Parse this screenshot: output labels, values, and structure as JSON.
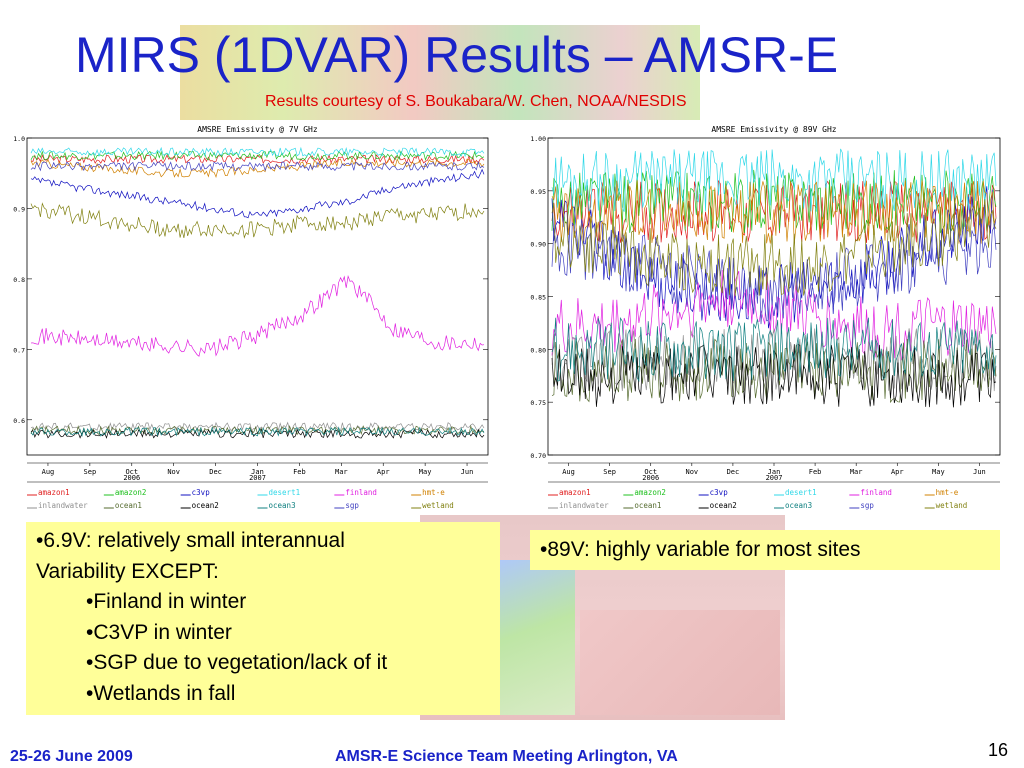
{
  "slide": {
    "title": "MIRS (1DVAR) Results – AMSR-E",
    "subtitle": "Results courtesy of S. Boukabara/W. Chen, NOAA/NESDIS",
    "note_left": {
      "line1": "•6.9V: relatively small interannual",
      "line2": "Variability EXCEPT:",
      "bullets": [
        "•Finland in winter",
        "•C3VP in winter",
        "•SGP due to vegetation/lack of it",
        "•Wetlands in fall"
      ]
    },
    "note_right": "•89V: highly variable for most sites",
    "footer_date": "25-26 June 2009",
    "footer_meeting": "AMSR-E Science Team Meeting  Arlington, VA",
    "page_number": "16"
  },
  "colors": {
    "title": "#1a23c8",
    "subtitle": "#e00000",
    "note_bg": "#ffff99",
    "amazon1": "#e02020",
    "amazon2": "#20c020",
    "c3vp": "#1010c0",
    "desert1": "#30d8e8",
    "finland": "#e020e0",
    "hmt-e": "#d08000",
    "inlandwater": "#909090",
    "ocean1": "#556b2f",
    "ocean2": "#000000",
    "ocean3": "#108080",
    "sgp": "#4040c0",
    "wetland": "#808010"
  },
  "chart_data": [
    {
      "type": "line",
      "title": "AMSRE Emissivity @ 7V GHz",
      "x_ticks": [
        "Aug",
        "Sep",
        "Oct",
        "Nov",
        "Dec",
        "Jan",
        "Feb",
        "Mar",
        "Apr",
        "May",
        "Jun"
      ],
      "year_labels": [
        {
          "label": "2006",
          "month": "Oct"
        },
        {
          "label": "2007",
          "month": "Jan"
        }
      ],
      "ylim": [
        0.55,
        1.0
      ],
      "y_ticks": [
        "1.0",
        "0.9",
        "0.8",
        "0.7",
        "0.6"
      ],
      "legend": [
        "amazon1",
        "amazon2",
        "c3vp",
        "desert1",
        "finland",
        "hmt-e",
        "inlandwater",
        "ocean1",
        "ocean2",
        "ocean3",
        "sgp",
        "wetland"
      ],
      "series": [
        {
          "name": "amazon1",
          "values": [
            0.97,
            0.97,
            0.97,
            0.97,
            0.97,
            0.97,
            0.97,
            0.97,
            0.97,
            0.97,
            0.97
          ]
        },
        {
          "name": "amazon2",
          "values": [
            0.975,
            0.975,
            0.975,
            0.975,
            0.975,
            0.975,
            0.975,
            0.975,
            0.975,
            0.975,
            0.975
          ]
        },
        {
          "name": "c3vp",
          "values": [
            0.94,
            0.93,
            0.92,
            0.91,
            0.9,
            0.89,
            0.9,
            0.91,
            0.93,
            0.94,
            0.95
          ]
        },
        {
          "name": "desert1",
          "values": [
            0.98,
            0.98,
            0.98,
            0.98,
            0.98,
            0.98,
            0.98,
            0.98,
            0.98,
            0.98,
            0.98
          ]
        },
        {
          "name": "finland",
          "values": [
            0.72,
            0.715,
            0.71,
            0.705,
            0.7,
            0.72,
            0.75,
            0.8,
            0.73,
            0.71,
            0.71
          ]
        },
        {
          "name": "hmt-e",
          "values": [
            0.965,
            0.96,
            0.955,
            0.95,
            0.95,
            0.955,
            0.96,
            0.965,
            0.965,
            0.965,
            0.965
          ]
        },
        {
          "name": "inlandwater",
          "values": [
            0.59,
            0.59,
            0.59,
            0.59,
            0.59,
            0.59,
            0.59,
            0.59,
            0.59,
            0.59,
            0.59
          ]
        },
        {
          "name": "ocean1",
          "values": [
            0.585,
            0.585,
            0.585,
            0.585,
            0.585,
            0.585,
            0.585,
            0.585,
            0.585,
            0.585,
            0.585
          ]
        },
        {
          "name": "ocean2",
          "values": [
            0.58,
            0.58,
            0.58,
            0.58,
            0.58,
            0.58,
            0.58,
            0.58,
            0.58,
            0.58,
            0.58
          ]
        },
        {
          "name": "ocean3",
          "values": [
            0.583,
            0.583,
            0.583,
            0.583,
            0.583,
            0.583,
            0.583,
            0.583,
            0.583,
            0.583,
            0.583
          ]
        },
        {
          "name": "sgp",
          "values": [
            0.96,
            0.96,
            0.96,
            0.96,
            0.96,
            0.96,
            0.96,
            0.96,
            0.96,
            0.96,
            0.96
          ]
        },
        {
          "name": "wetland",
          "values": [
            0.9,
            0.89,
            0.88,
            0.87,
            0.87,
            0.87,
            0.88,
            0.88,
            0.89,
            0.89,
            0.9
          ]
        }
      ]
    },
    {
      "type": "line",
      "title": "AMSRE Emissivity @ 89V GHz",
      "x_ticks": [
        "Aug",
        "Sep",
        "Oct",
        "Nov",
        "Dec",
        "Jan",
        "Feb",
        "Mar",
        "Apr",
        "May",
        "Jun"
      ],
      "year_labels": [
        {
          "label": "2006",
          "month": "Oct"
        },
        {
          "label": "2007",
          "month": "Jan"
        }
      ],
      "ylim": [
        0.7,
        1.0
      ],
      "y_ticks": [
        "1.00",
        "0.95",
        "0.90",
        "0.85",
        "0.80",
        "0.75",
        "0.70"
      ],
      "legend": [
        "amazon1",
        "amazon2",
        "c3vp",
        "desert1",
        "finland",
        "hmt-e",
        "inlandwater",
        "ocean1",
        "ocean2",
        "ocean3",
        "sgp",
        "wetland"
      ],
      "series": [
        {
          "name": "amazon1",
          "values": [
            0.93,
            0.93,
            0.93,
            0.93,
            0.93,
            0.93,
            0.93,
            0.93,
            0.93,
            0.93,
            0.93
          ]
        },
        {
          "name": "amazon2",
          "values": [
            0.94,
            0.94,
            0.94,
            0.94,
            0.94,
            0.94,
            0.94,
            0.94,
            0.94,
            0.94,
            0.94
          ]
        },
        {
          "name": "c3vp",
          "values": [
            0.93,
            0.9,
            0.87,
            0.86,
            0.85,
            0.85,
            0.86,
            0.87,
            0.89,
            0.91,
            0.93
          ]
        },
        {
          "name": "desert1",
          "values": [
            0.96,
            0.96,
            0.96,
            0.96,
            0.96,
            0.96,
            0.96,
            0.96,
            0.96,
            0.96,
            0.96
          ]
        },
        {
          "name": "finland",
          "values": [
            0.82,
            0.82,
            0.83,
            0.84,
            0.85,
            0.84,
            0.83,
            0.82,
            0.82,
            0.82,
            0.82
          ]
        },
        {
          "name": "hmt-e",
          "values": [
            0.93,
            0.93,
            0.93,
            0.93,
            0.93,
            0.93,
            0.93,
            0.93,
            0.93,
            0.93,
            0.93
          ]
        },
        {
          "name": "inlandwater",
          "values": [
            0.79,
            0.79,
            0.79,
            0.79,
            0.79,
            0.79,
            0.79,
            0.79,
            0.79,
            0.79,
            0.79
          ]
        },
        {
          "name": "ocean1",
          "values": [
            0.78,
            0.78,
            0.78,
            0.78,
            0.78,
            0.78,
            0.78,
            0.78,
            0.78,
            0.78,
            0.78
          ]
        },
        {
          "name": "ocean2",
          "values": [
            0.775,
            0.775,
            0.775,
            0.775,
            0.775,
            0.775,
            0.775,
            0.775,
            0.775,
            0.775,
            0.775
          ]
        },
        {
          "name": "ocean3",
          "values": [
            0.8,
            0.8,
            0.8,
            0.8,
            0.8,
            0.8,
            0.8,
            0.8,
            0.8,
            0.8,
            0.8
          ]
        },
        {
          "name": "sgp",
          "values": [
            0.9,
            0.89,
            0.88,
            0.87,
            0.86,
            0.85,
            0.86,
            0.87,
            0.88,
            0.89,
            0.9
          ]
        },
        {
          "name": "wetland",
          "values": [
            0.91,
            0.9,
            0.89,
            0.88,
            0.88,
            0.88,
            0.88,
            0.89,
            0.9,
            0.91,
            0.92
          ]
        }
      ]
    }
  ]
}
